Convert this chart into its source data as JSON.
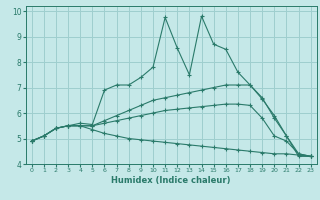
{
  "xlabel": "Humidex (Indice chaleur)",
  "ylabel": "",
  "background_color": "#c5e8e8",
  "grid_color": "#9ecece",
  "line_color": "#2a7a6a",
  "xlim": [
    -0.5,
    23.5
  ],
  "ylim": [
    4,
    10.2
  ],
  "yticks": [
    4,
    5,
    6,
    7,
    8,
    9,
    10
  ],
  "xticks": [
    0,
    1,
    2,
    3,
    4,
    5,
    6,
    7,
    8,
    9,
    10,
    11,
    12,
    13,
    14,
    15,
    16,
    17,
    18,
    19,
    20,
    21,
    22,
    23
  ],
  "lines": [
    {
      "x": [
        0,
        1,
        2,
        3,
        4,
        5,
        6,
        7,
        8,
        9,
        10,
        11,
        12,
        13,
        14,
        15,
        16,
        17,
        18,
        19,
        20,
        21,
        22,
        23
      ],
      "y": [
        4.9,
        5.1,
        5.4,
        5.5,
        5.6,
        5.55,
        6.9,
        7.1,
        7.1,
        7.4,
        7.8,
        9.75,
        8.55,
        7.5,
        9.8,
        8.7,
        8.5,
        7.6,
        7.1,
        6.55,
        5.9,
        5.1,
        4.3,
        4.3
      ]
    },
    {
      "x": [
        0,
        1,
        2,
        3,
        4,
        5,
        6,
        7,
        8,
        9,
        10,
        11,
        12,
        13,
        14,
        15,
        16,
        17,
        18,
        19,
        20,
        21,
        22,
        23
      ],
      "y": [
        4.9,
        5.1,
        5.4,
        5.5,
        5.5,
        5.5,
        5.7,
        5.9,
        6.1,
        6.3,
        6.5,
        6.6,
        6.7,
        6.8,
        6.9,
        7.0,
        7.1,
        7.1,
        7.1,
        6.6,
        5.8,
        5.1,
        4.4,
        4.3
      ]
    },
    {
      "x": [
        0,
        1,
        2,
        3,
        4,
        5,
        6,
        7,
        8,
        9,
        10,
        11,
        12,
        13,
        14,
        15,
        16,
        17,
        18,
        19,
        20,
        21,
        22,
        23
      ],
      "y": [
        4.9,
        5.1,
        5.4,
        5.5,
        5.5,
        5.5,
        5.6,
        5.7,
        5.8,
        5.9,
        6.0,
        6.1,
        6.15,
        6.2,
        6.25,
        6.3,
        6.35,
        6.35,
        6.3,
        5.8,
        5.1,
        4.9,
        4.4,
        4.3
      ]
    },
    {
      "x": [
        0,
        1,
        2,
        3,
        4,
        5,
        6,
        7,
        8,
        9,
        10,
        11,
        12,
        13,
        14,
        15,
        16,
        17,
        18,
        19,
        20,
        21,
        22,
        23
      ],
      "y": [
        4.9,
        5.1,
        5.4,
        5.5,
        5.5,
        5.35,
        5.2,
        5.1,
        5.0,
        4.95,
        4.9,
        4.85,
        4.8,
        4.75,
        4.7,
        4.65,
        4.6,
        4.55,
        4.5,
        4.45,
        4.4,
        4.4,
        4.35,
        4.3
      ]
    }
  ]
}
